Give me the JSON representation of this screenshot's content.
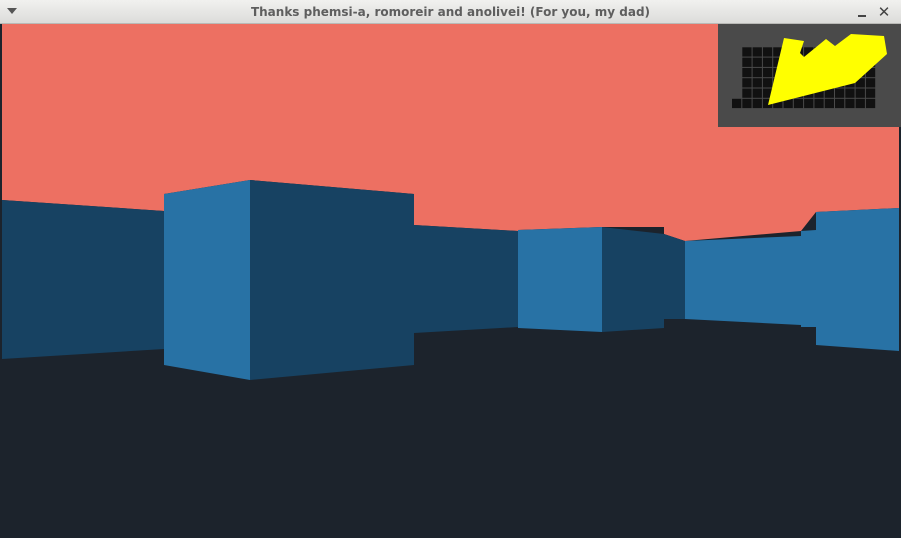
{
  "window": {
    "title": "Thanks phemsi-a, romoreir and anolivei! (For you, my dad)",
    "close_glyph": "✕"
  },
  "scene": {
    "ceiling_color": "#ed7062",
    "floor_color": "#1c232c",
    "wall_light_color": "#2872a5",
    "wall_dark_color": "#174262"
  },
  "minimap": {
    "background_color": "#4a4a4a",
    "wall_color": "#111111",
    "grid_color": "#4a4a4a",
    "player_color": "#ffff00",
    "grid": [
      "...............",
      ".#############.",
      ".#############.",
      ".#############.",
      ".#############.",
      ".#############.",
      "##############."
    ]
  }
}
